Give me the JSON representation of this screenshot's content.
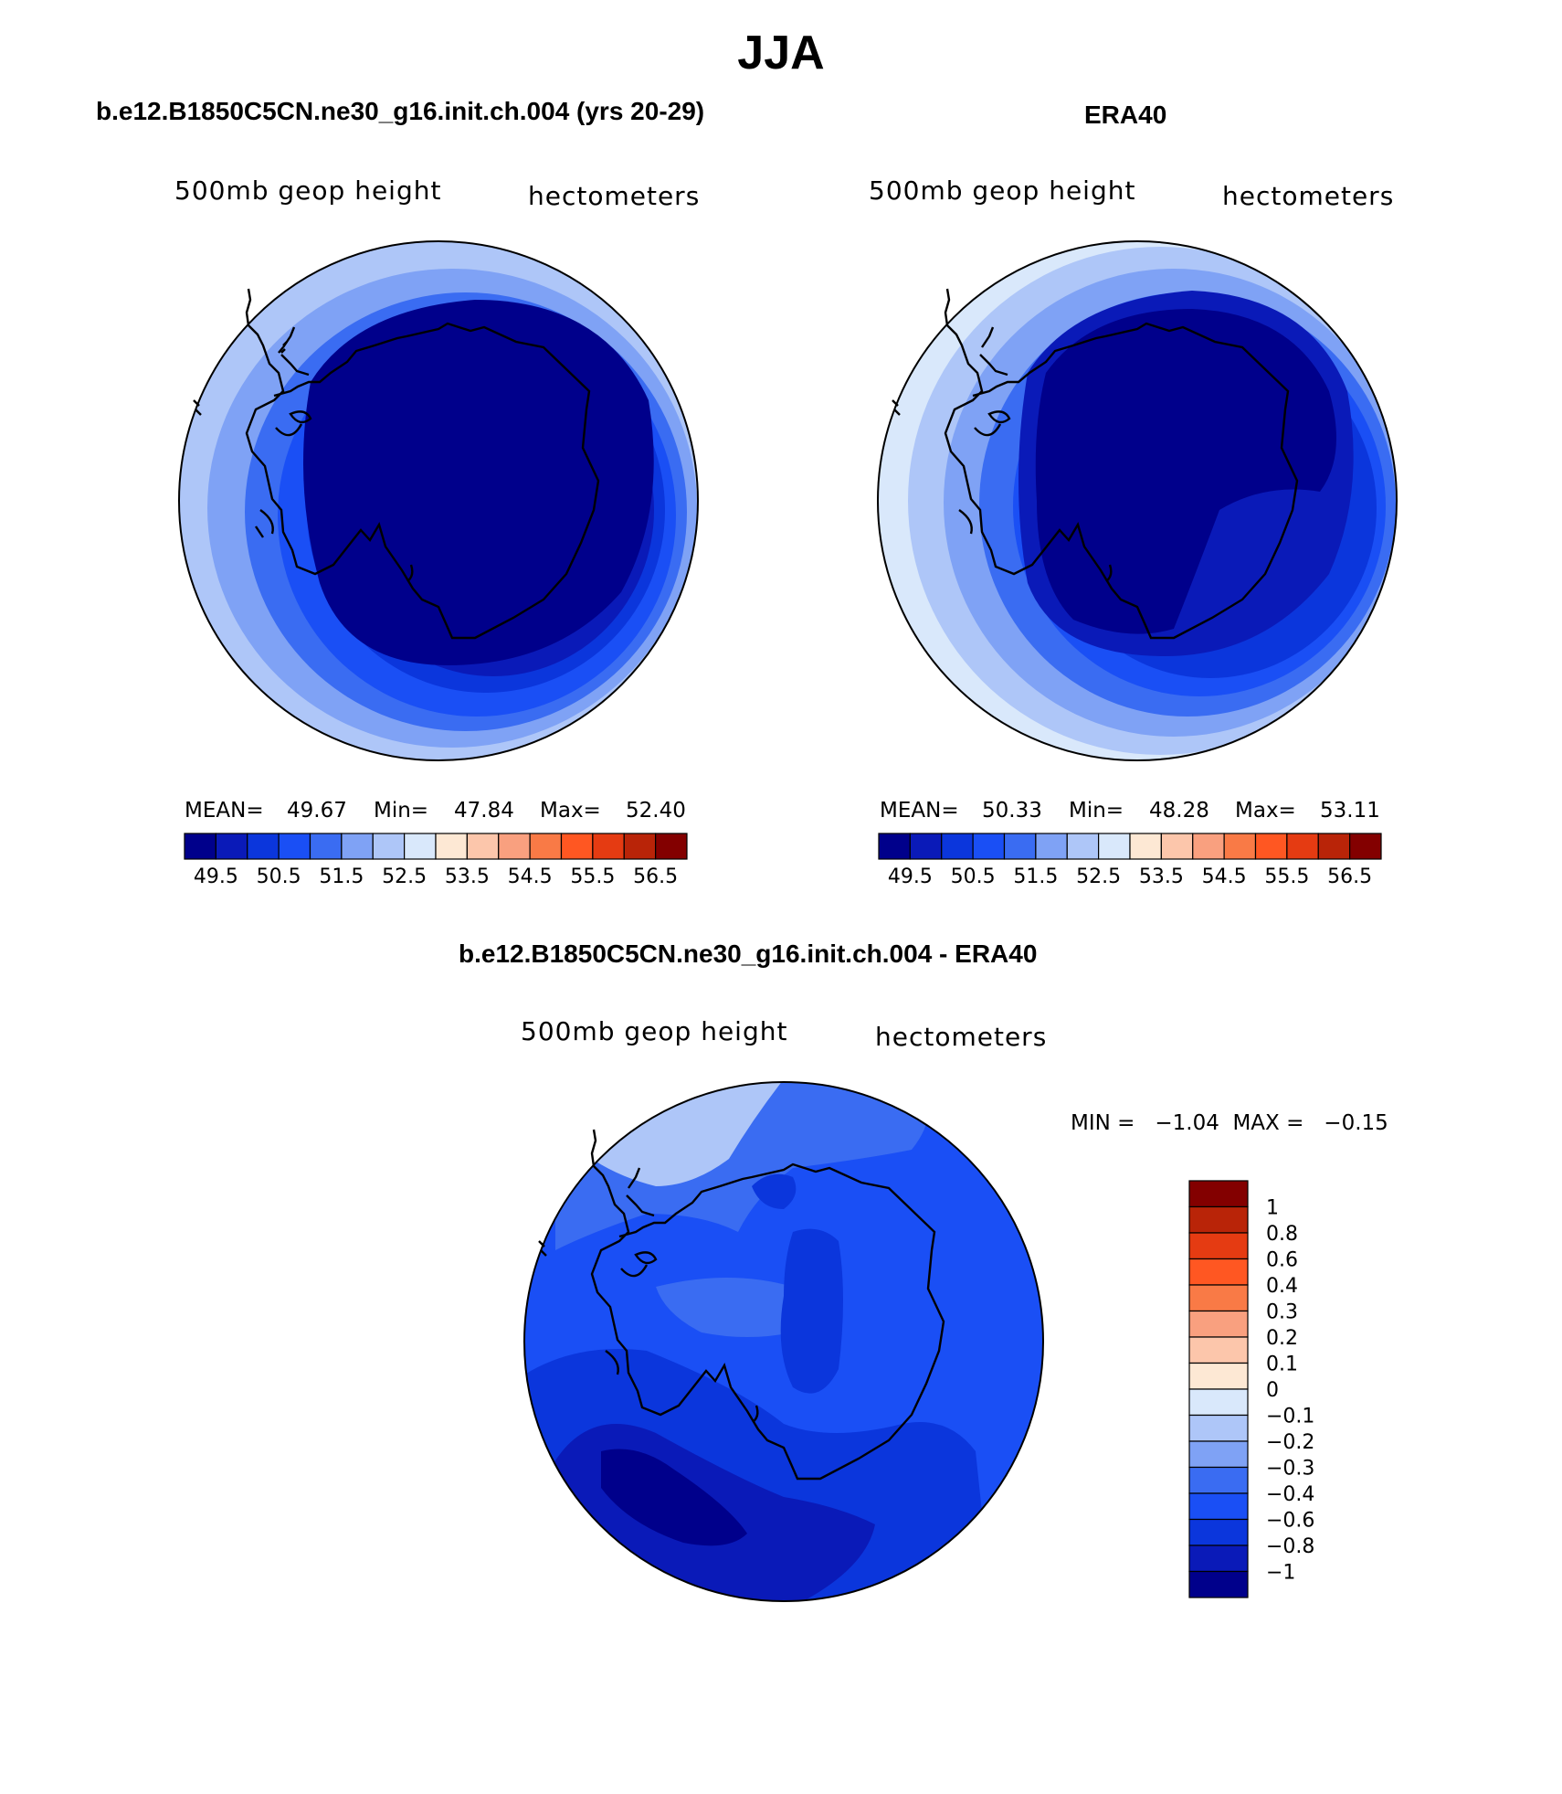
{
  "figure": {
    "season": "JJA",
    "panels": [
      {
        "title": "b.e12.B1850C5CN.ne30_g16.init.ch.004 (yrs 20-29)",
        "left_label": "500mb geop height",
        "right_label": "hectometers",
        "mean_label": "MEAN=",
        "mean_value": "49.67",
        "min_label": "Min=",
        "min_value": "47.84",
        "max_label": "Max=",
        "max_value": "52.40"
      },
      {
        "title": "ERA40",
        "left_label": "500mb geop height",
        "right_label": "hectometers",
        "mean_label": "MEAN=",
        "mean_value": "50.33",
        "min_label": "Min=",
        "min_value": "48.28",
        "max_label": "Max=",
        "max_value": "53.11"
      }
    ],
    "difference": {
      "title": "b.e12.B1850C5CN.ne30_g16.init.ch.004 - ERA40",
      "left_label": "500mb geop height",
      "right_label": "hectometers",
      "minmax_text": "MIN =   −1.04  MAX =   −0.15"
    }
  },
  "colorbar_abs": {
    "colors": [
      "#00008b",
      "#0a1ab8",
      "#0b36dc",
      "#1a4ff5",
      "#3a6cf2",
      "#7fa2f5",
      "#aec6f8",
      "#d9e8fb",
      "#fde8d4",
      "#fcc6ab",
      "#f9a07f",
      "#f97a46",
      "#ff5722",
      "#e53b12",
      "#b92408",
      "#830000"
    ],
    "tick_labels": [
      "49.5",
      "50.5",
      "51.5",
      "52.5",
      "53.5",
      "54.5",
      "55.5",
      "56.5"
    ]
  },
  "colorbar_diff": {
    "colors_top_to_bottom": [
      "#830000",
      "#b92408",
      "#e53b12",
      "#ff5722",
      "#f97a46",
      "#f9a07f",
      "#fcc6ab",
      "#fde8d4",
      "#d9e8fb",
      "#aec6f8",
      "#7fa2f5",
      "#3a6cf2",
      "#1a4ff5",
      "#0b36dc",
      "#0a1ab8",
      "#00008b"
    ],
    "tick_labels": [
      "1",
      "0.8",
      "0.6",
      "0.4",
      "0.3",
      "0.2",
      "0.1",
      "0",
      "−0.1",
      "−0.2",
      "−0.3",
      "−0.4",
      "−0.6",
      "−0.8",
      "−1"
    ]
  },
  "map_colors": {
    "model_rings": [
      "#aec6f8",
      "#7fa2f5",
      "#3a6cf2",
      "#1a4ff5",
      "#0b36dc",
      "#0a1ab8",
      "#00008b"
    ],
    "era_rings": [
      "#d9e8fb",
      "#aec6f8",
      "#7fa2f5",
      "#3a6cf2",
      "#1a4ff5",
      "#0b36dc",
      "#0a1ab8",
      "#00008b"
    ],
    "diff_base": "#1a4ff5",
    "diff_light": "#aec6f8",
    "diff_mid": "#3a6cf2",
    "diff_dark": "#0b36dc",
    "diff_darker": "#0a1ab8",
    "diff_darkest": "#00008b"
  }
}
